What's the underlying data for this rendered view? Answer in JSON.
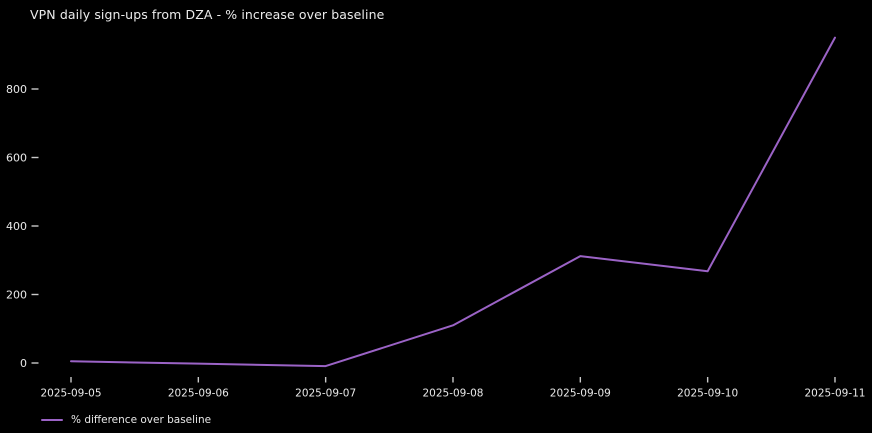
{
  "title": "VPN daily sign-ups from DZA - % increase over baseline",
  "legend": {
    "label": "% difference over baseline"
  },
  "colors": {
    "background": "#000000",
    "line": "#9b63c6",
    "text": "#e8e8e8",
    "tick_mark": "#c9c9c9"
  },
  "chart_data": {
    "type": "line",
    "title": "VPN daily sign-ups from DZA - % increase over baseline",
    "categories": [
      "2025-09-05",
      "2025-09-06",
      "2025-09-07",
      "2025-09-08",
      "2025-09-09",
      "2025-09-10",
      "2025-09-11"
    ],
    "series": [
      {
        "name": "% difference over baseline",
        "values": [
          5,
          -2,
          -9,
          110,
          312,
          268,
          950
        ]
      }
    ],
    "xlabel": "",
    "ylabel": "",
    "yticks": [
      0,
      200,
      400,
      600,
      800
    ],
    "ylim": [
      -40,
      990
    ],
    "grid": false,
    "legend_position": "lower-left",
    "background": "black"
  }
}
